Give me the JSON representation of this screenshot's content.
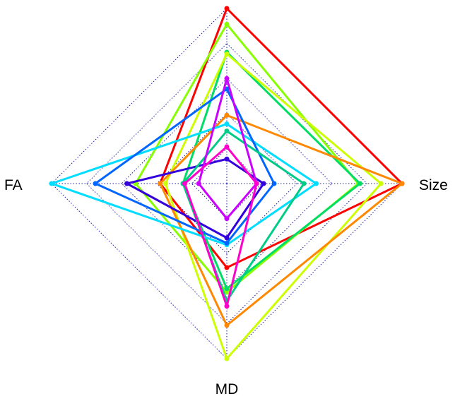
{
  "chart_data": {
    "type": "radar",
    "axes": [
      "",
      "Size",
      "MD",
      "FA"
    ],
    "axis_labels": {
      "size": "Size",
      "md": "MD",
      "fa": "FA"
    },
    "range": [
      0,
      1
    ],
    "rings": 5,
    "grid": true,
    "grid_color": "#1a1aa6",
    "series": [
      {
        "color": "#ff0000",
        "values": [
          1.0,
          1.0,
          0.48,
          0.38
        ]
      },
      {
        "color": "#88ff00",
        "values": [
          0.91,
          0.75,
          0.62,
          0.52
        ]
      },
      {
        "color": "#00dd66",
        "values": [
          0.75,
          0.76,
          0.6,
          0.25
        ]
      },
      {
        "color": "#ccff00",
        "values": [
          0.74,
          0.88,
          1.0,
          0.35
        ]
      },
      {
        "color": "#ff8800",
        "values": [
          0.39,
          1.0,
          0.81,
          0.38
        ]
      },
      {
        "color": "#00ddff",
        "values": [
          0.34,
          0.51,
          0.35,
          1.0
        ]
      },
      {
        "color": "#0066ff",
        "values": [
          0.54,
          0.27,
          0.34,
          0.75
        ]
      },
      {
        "color": "#3300dd",
        "values": [
          0.14,
          0.21,
          0.31,
          0.57
        ]
      },
      {
        "color": "#00cc88",
        "values": [
          0.3,
          0.44,
          0.67,
          0.25
        ]
      },
      {
        "color": "#cc00ff",
        "values": [
          0.6,
          0.17,
          0.2,
          0.16
        ]
      },
      {
        "color": "#ff00cc",
        "values": [
          0.21,
          0.17,
          0.7,
          0.24
        ]
      }
    ]
  }
}
